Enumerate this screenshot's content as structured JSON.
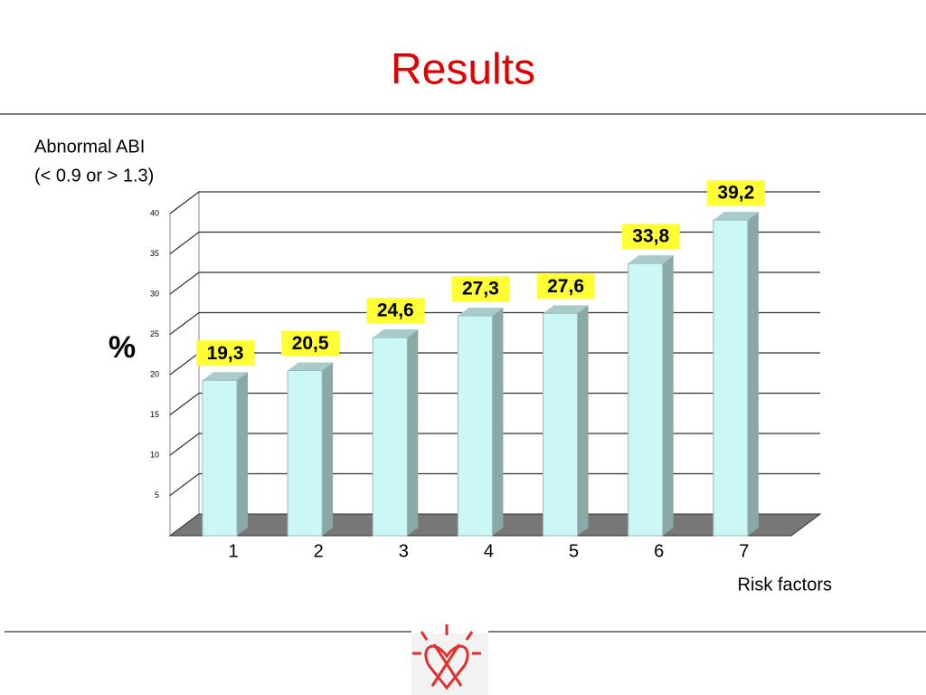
{
  "chart_data": {
    "type": "bar3d",
    "title": "Results",
    "annotation": [
      "Abnormal ABI",
      "(< 0.9 or > 1.3)"
    ],
    "y_label": "%",
    "x_label": "Risk factors",
    "categories": [
      "1",
      "2",
      "3",
      "4",
      "5",
      "6",
      "7"
    ],
    "values": [
      19.3,
      20.5,
      24.6,
      27.3,
      27.6,
      33.8,
      39.2
    ],
    "value_labels": [
      "19,3",
      "20,5",
      "24,6",
      "27,3",
      "27,6",
      "33,8",
      "39,2"
    ],
    "color": "#ccf7f7",
    "label_background": "#ffff33",
    "ylim": [
      0,
      40
    ],
    "yticks": [
      5,
      10,
      15,
      20,
      25,
      30,
      35,
      40
    ],
    "grid": true
  }
}
